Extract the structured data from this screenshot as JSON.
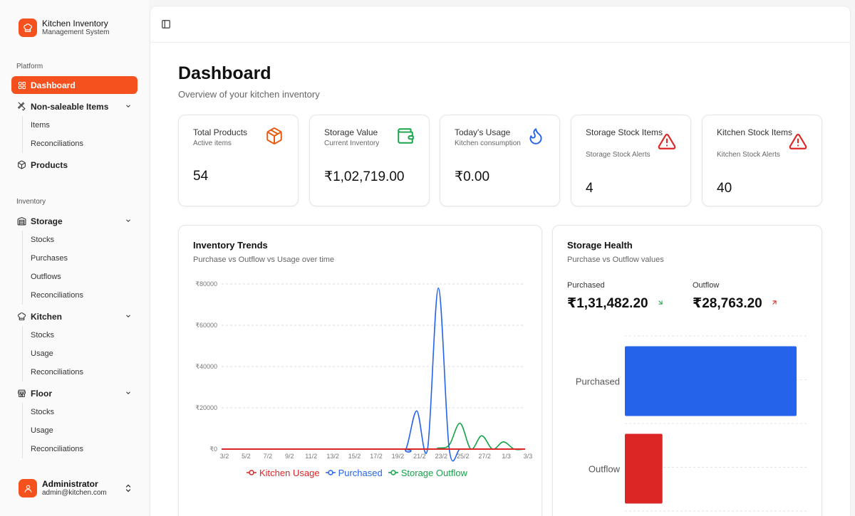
{
  "app": {
    "title": "Kitchen Inventory",
    "subtitle": "Management System"
  },
  "sidebar": {
    "platform_label": "Platform",
    "inventory_label": "Inventory",
    "items": [
      {
        "label": "Dashboard"
      },
      {
        "label": "Non-saleable Items",
        "children": [
          "Items",
          "Reconciliations"
        ]
      },
      {
        "label": "Products"
      },
      {
        "label": "Storage",
        "children": [
          "Stocks",
          "Purchases",
          "Outflows",
          "Reconciliations"
        ]
      },
      {
        "label": "Kitchen",
        "children": [
          "Stocks",
          "Usage",
          "Reconciliations"
        ]
      },
      {
        "label": "Floor",
        "children": [
          "Stocks",
          "Usage",
          "Reconciliations"
        ]
      }
    ]
  },
  "user": {
    "name": "Administrator",
    "email": "admin@kitchen.com"
  },
  "page": {
    "title": "Dashboard",
    "subtitle": "Overview of your kitchen inventory"
  },
  "stats": [
    {
      "title": "Total Products",
      "sub": "Active items",
      "value": "54",
      "icon": "package-icon",
      "color": "#ea580c"
    },
    {
      "title": "Storage Value",
      "sub": "Current Inventory",
      "value": "₹1,02,719.00",
      "icon": "wallet-icon",
      "color": "#16a34a"
    },
    {
      "title": "Today's Usage",
      "sub": "Kitchen consumption",
      "value": "₹0.00",
      "icon": "flame-icon",
      "color": "#2563eb"
    },
    {
      "title": "Storage Stock Items",
      "sub": "Storage Stock Alerts",
      "value": "4",
      "icon": "alert-triangle-icon",
      "color": "#dc2626"
    },
    {
      "title": "Kitchen Stock Items",
      "sub": "Kitchen Stock Alerts",
      "value": "40",
      "icon": "alert-triangle-icon",
      "color": "#dc2626"
    }
  ],
  "trends": {
    "title": "Inventory Trends",
    "subtitle": "Purchase vs Outflow vs Usage over time"
  },
  "health": {
    "title": "Storage Health",
    "subtitle": "Purchase vs Outflow values",
    "purchased_label": "Purchased",
    "purchased_value": "₹1,31,482.20",
    "outflow_label": "Outflow",
    "outflow_value": "₹28,763.20"
  },
  "chart_data": [
    {
      "type": "line",
      "x": [
        "3/2",
        "5/2",
        "7/2",
        "9/2",
        "11/2",
        "13/2",
        "15/2",
        "17/2",
        "19/2",
        "21/2",
        "23/2",
        "25/2",
        "27/2",
        "1/3",
        "3/3"
      ],
      "ylim": [
        0,
        80000
      ],
      "yticks": [
        "₹0",
        "₹20000",
        "₹40000",
        "₹60000",
        "₹80000"
      ],
      "yticks_values": [
        0,
        20000,
        40000,
        60000,
        80000
      ],
      "grid": true,
      "legend": "bottom",
      "series": [
        {
          "name": "Kitchen Usage",
          "color": "#dc2626",
          "points": [
            [
              0,
              0
            ],
            [
              1,
              0
            ],
            [
              2,
              0
            ],
            [
              3,
              0
            ],
            [
              4,
              0
            ],
            [
              5,
              0
            ],
            [
              6,
              0
            ],
            [
              7,
              0
            ],
            [
              8,
              0
            ],
            [
              9,
              0
            ],
            [
              10,
              0
            ],
            [
              11,
              0
            ],
            [
              12,
              0
            ],
            [
              13,
              0
            ],
            [
              14,
              0
            ]
          ]
        },
        {
          "name": "Purchased",
          "color": "#2563eb",
          "points": [
            [
              0,
              0
            ],
            [
              8,
              0
            ],
            [
              8.5,
              0
            ],
            [
              9,
              18500
            ],
            [
              9.5,
              0
            ],
            [
              10,
              78000
            ],
            [
              10.5,
              0
            ],
            [
              11,
              0
            ],
            [
              11.5,
              0
            ],
            [
              12,
              0
            ],
            [
              14,
              0
            ]
          ]
        },
        {
          "name": "Storage Outflow",
          "color": "#16a34a",
          "points": [
            [
              0,
              0
            ],
            [
              9,
              0
            ],
            [
              10,
              500
            ],
            [
              10.5,
              2000
            ],
            [
              11,
              12500
            ],
            [
              11.5,
              0
            ],
            [
              12,
              6500
            ],
            [
              12.5,
              0
            ],
            [
              13,
              3500
            ],
            [
              13.5,
              0
            ],
            [
              14,
              0
            ]
          ]
        }
      ]
    },
    {
      "type": "bar",
      "orientation": "horizontal",
      "categories": [
        "Purchased",
        "Outflow"
      ],
      "values": [
        131482.2,
        28763.2
      ],
      "colors": [
        "#2563eb",
        "#dc2626"
      ],
      "xlim": [
        0,
        131482.2
      ],
      "grid": true
    }
  ]
}
